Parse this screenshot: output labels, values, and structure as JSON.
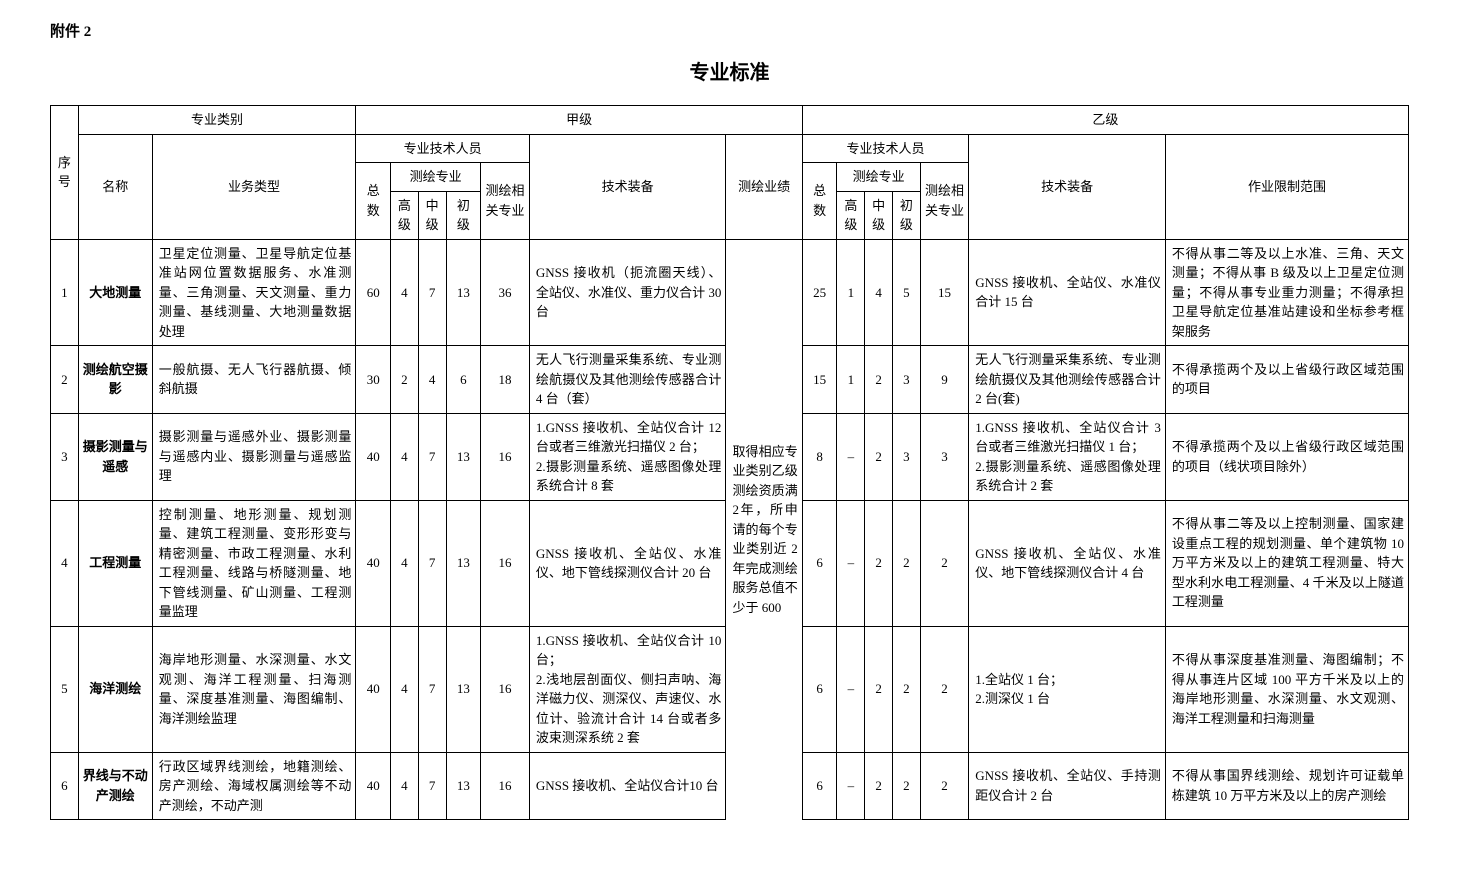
{
  "attachment_label": "附件 2",
  "doc_title": "专业标准",
  "headers": {
    "seq": "序号",
    "category": "专业类别",
    "name": "名称",
    "biz_type": "业务类型",
    "grade_a": "甲级",
    "grade_b": "乙级",
    "tech_staff": "专业技术人员",
    "total": "总数",
    "survey_major": "测绘专业",
    "high": "高级",
    "mid": "中级",
    "low": "初级",
    "related_major": "测绘相关专业",
    "equipment": "技术装备",
    "performance": "测绘业绩",
    "limit": "作业限制范围"
  },
  "performance_text": "取得相应专业类别乙级测绘资质满 2年，所申请的每个专业类别近 2 年完成测绘服务总值不少于 600",
  "rows": [
    {
      "seq": "1",
      "name": "大地测量",
      "biz": "卫星定位测量、卫星导航定位基准站网位置数据服务、水准测量、三角测量、天文测量、重力测量、基线测量、大地测量数据处理",
      "a_total": "60",
      "a_h": "4",
      "a_m": "7",
      "a_l": "13",
      "a_rel": "36",
      "a_eq": "GNSS 接收机（扼流圈天线）、全站仪、水准仪、重力仪合计 30 台",
      "b_total": "25",
      "b_h": "1",
      "b_m": "4",
      "b_l": "5",
      "b_rel": "15",
      "b_eq": "GNSS 接收机、全站仪、水准仪合计 15 台",
      "b_lim": "不得从事二等及以上水准、三角、天文测量；不得从事 B 级及以上卫星定位测量；不得从事专业重力测量；不得承担卫星导航定位基准站建设和坐标参考框架服务"
    },
    {
      "seq": "2",
      "name": "测绘航空摄影",
      "biz": "一般航摄、无人飞行器航摄、倾斜航摄",
      "a_total": "30",
      "a_h": "2",
      "a_m": "4",
      "a_l": "6",
      "a_rel": "18",
      "a_eq": "无人飞行测量采集系统、专业测绘航摄仪及其他测绘传感器合计 4 台（套）",
      "b_total": "15",
      "b_h": "1",
      "b_m": "2",
      "b_l": "3",
      "b_rel": "9",
      "b_eq": "无人飞行测量采集系统、专业测绘航摄仪及其他测绘传感器合计 2 台(套)",
      "b_lim": "不得承揽两个及以上省级行政区域范围的项目"
    },
    {
      "seq": "3",
      "name": "摄影测量与遥感",
      "biz": "摄影测量与遥感外业、摄影测量与遥感内业、摄影测量与遥感监理",
      "a_total": "40",
      "a_h": "4",
      "a_m": "7",
      "a_l": "13",
      "a_rel": "16",
      "a_eq": "1.GNSS 接收机、全站仪合计 12 台或者三维激光扫描仪 2 台；\n2.摄影测量系统、遥感图像处理系统合计 8 套",
      "b_total": "8",
      "b_h": "–",
      "b_m": "2",
      "b_l": "3",
      "b_rel": "3",
      "b_eq": "1.GNSS 接收机、全站仪合计 3 台或者三维激光扫描仪 1 台；\n2.摄影测量系统、遥感图像处理系统合计 2 套",
      "b_lim": "不得承揽两个及以上省级行政区域范围的项目（线状项目除外）"
    },
    {
      "seq": "4",
      "name": "工程测量",
      "biz": "控制测量、地形测量、规划测量、建筑工程测量、变形形变与精密测量、市政工程测量、水利工程测量、线路与桥隧测量、地下管线测量、矿山测量、工程测量监理",
      "a_total": "40",
      "a_h": "4",
      "a_m": "7",
      "a_l": "13",
      "a_rel": "16",
      "a_eq": "GNSS 接收机、全站仪、水准仪、地下管线探测仪合计 20 台",
      "b_total": "6",
      "b_h": "–",
      "b_m": "2",
      "b_l": "2",
      "b_rel": "2",
      "b_eq": "GNSS 接收机、全站仪、水准仪、地下管线探测仪合计 4 台",
      "b_lim": "不得从事二等及以上控制测量、国家建设重点工程的规划测量、单个建筑物 10万平方米及以上的建筑工程测量、特大型水利水电工程测量、4 千米及以上隧道工程测量"
    },
    {
      "seq": "5",
      "name": "海洋测绘",
      "biz": "海岸地形测量、水深测量、水文观测、海洋工程测量、扫海测量、深度基准测量、海图编制、海洋测绘监理",
      "a_total": "40",
      "a_h": "4",
      "a_m": "7",
      "a_l": "13",
      "a_rel": "16",
      "a_eq": "1.GNSS 接收机、全站仪合计 10 台；\n2.浅地层剖面仪、侧扫声呐、海洋磁力仪、测深仪、声速仪、水位计、验流计合计 14 台或者多波束测深系统 2 套",
      "b_total": "6",
      "b_h": "–",
      "b_m": "2",
      "b_l": "2",
      "b_rel": "2",
      "b_eq": "1.全站仪 1 台；\n2.测深仪 1 台",
      "b_lim": "不得从事深度基准测量、海图编制；不得从事连片区域 100 平方千米及以上的海岸地形测量、水深测量、水文观测、海洋工程测量和扫海测量"
    },
    {
      "seq": "6",
      "name": "界线与不动产测绘",
      "biz": "行政区域界线测绘，地籍测绘、房产测绘、海域权属测绘等不动产测绘，不动产测",
      "a_total": "40",
      "a_h": "4",
      "a_m": "7",
      "a_l": "13",
      "a_rel": "16",
      "a_eq": "GNSS 接收机、全站仪合计10 台",
      "b_total": "6",
      "b_h": "–",
      "b_m": "2",
      "b_l": "2",
      "b_rel": "2",
      "b_eq": "GNSS 接收机、全站仪、手持测距仪合计 2 台",
      "b_lim": "不得从事国界线测绘、规划许可证载单栋建筑 10 万平方米及以上的房产测绘"
    }
  ]
}
